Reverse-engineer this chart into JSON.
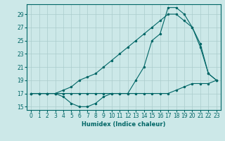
{
  "xlabel": "Humidex (Indice chaleur)",
  "x_ticks": [
    0,
    1,
    2,
    3,
    4,
    5,
    6,
    7,
    8,
    9,
    10,
    11,
    12,
    13,
    14,
    15,
    16,
    17,
    18,
    19,
    20,
    21,
    22,
    23
  ],
  "xlim": [
    -0.5,
    23.5
  ],
  "ylim": [
    14.5,
    30.5
  ],
  "y_ticks": [
    15,
    17,
    19,
    21,
    23,
    25,
    27,
    29
  ],
  "bg_color": "#cce8e8",
  "grid_color": "#aacccc",
  "line_color": "#006666",
  "line1_x": [
    0,
    1,
    2,
    3,
    4,
    5,
    6,
    7,
    8,
    9,
    10,
    11,
    12,
    13,
    14,
    15,
    16,
    17,
    18,
    19,
    20,
    21,
    22,
    23
  ],
  "line1_y": [
    17,
    17,
    17,
    17,
    17,
    17,
    17,
    17,
    17,
    17,
    17,
    17,
    17,
    17,
    17,
    17,
    17,
    17,
    17.5,
    18,
    18.5,
    18.5,
    18.5,
    19
  ],
  "line2_x": [
    0,
    1,
    2,
    3,
    4,
    5,
    6,
    7,
    8,
    9,
    10,
    11,
    12,
    13,
    14,
    15,
    16,
    17,
    18,
    19,
    20,
    21,
    22,
    23
  ],
  "line2_y": [
    17,
    17,
    17,
    17,
    16.5,
    15.5,
    15,
    15,
    15.5,
    16.5,
    17,
    17,
    17,
    19,
    21,
    25,
    26,
    30,
    30,
    29,
    27,
    24,
    20,
    19
  ],
  "line3_x": [
    0,
    1,
    2,
    3,
    4,
    5,
    6,
    7,
    8,
    9,
    10,
    11,
    12,
    13,
    14,
    15,
    16,
    17,
    18,
    19,
    20,
    21,
    22,
    23
  ],
  "line3_y": [
    17,
    17,
    17,
    17,
    17.5,
    18,
    19,
    19.5,
    20,
    21,
    22,
    23,
    24,
    25,
    26,
    27,
    28,
    29,
    29,
    28,
    27,
    24.5,
    20,
    19
  ]
}
